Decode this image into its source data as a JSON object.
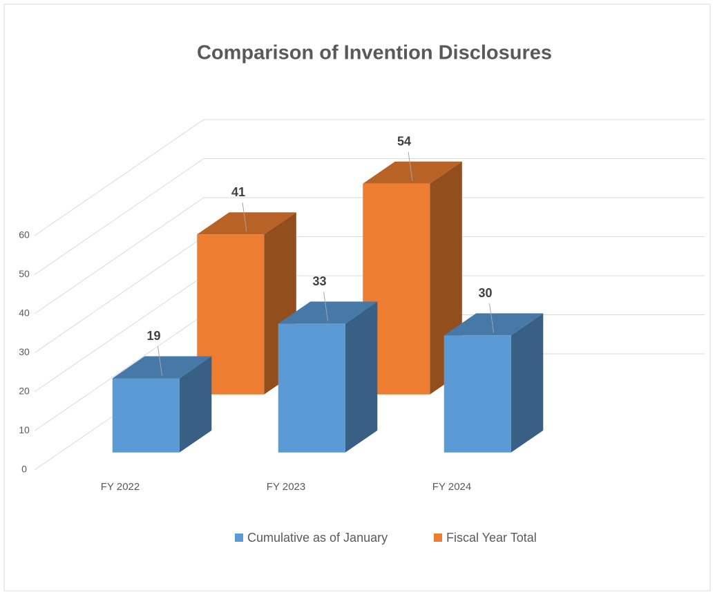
{
  "chart_data": {
    "type": "bar3d",
    "title": "Comparison of Invention Disclosures",
    "categories": [
      "FY 2022",
      "FY 2023",
      "FY 2024"
    ],
    "series": [
      {
        "name": "Cumulative as of January",
        "color": "#5b9bd5",
        "values": [
          19,
          33,
          30
        ]
      },
      {
        "name": "Fiscal Year Total",
        "color": "#ed7d31",
        "values": [
          41,
          54,
          null
        ]
      }
    ],
    "ylim": [
      0,
      60
    ],
    "yticks": [
      0,
      10,
      20,
      30,
      40,
      50,
      60
    ],
    "grid": true,
    "legend": "bottom"
  }
}
